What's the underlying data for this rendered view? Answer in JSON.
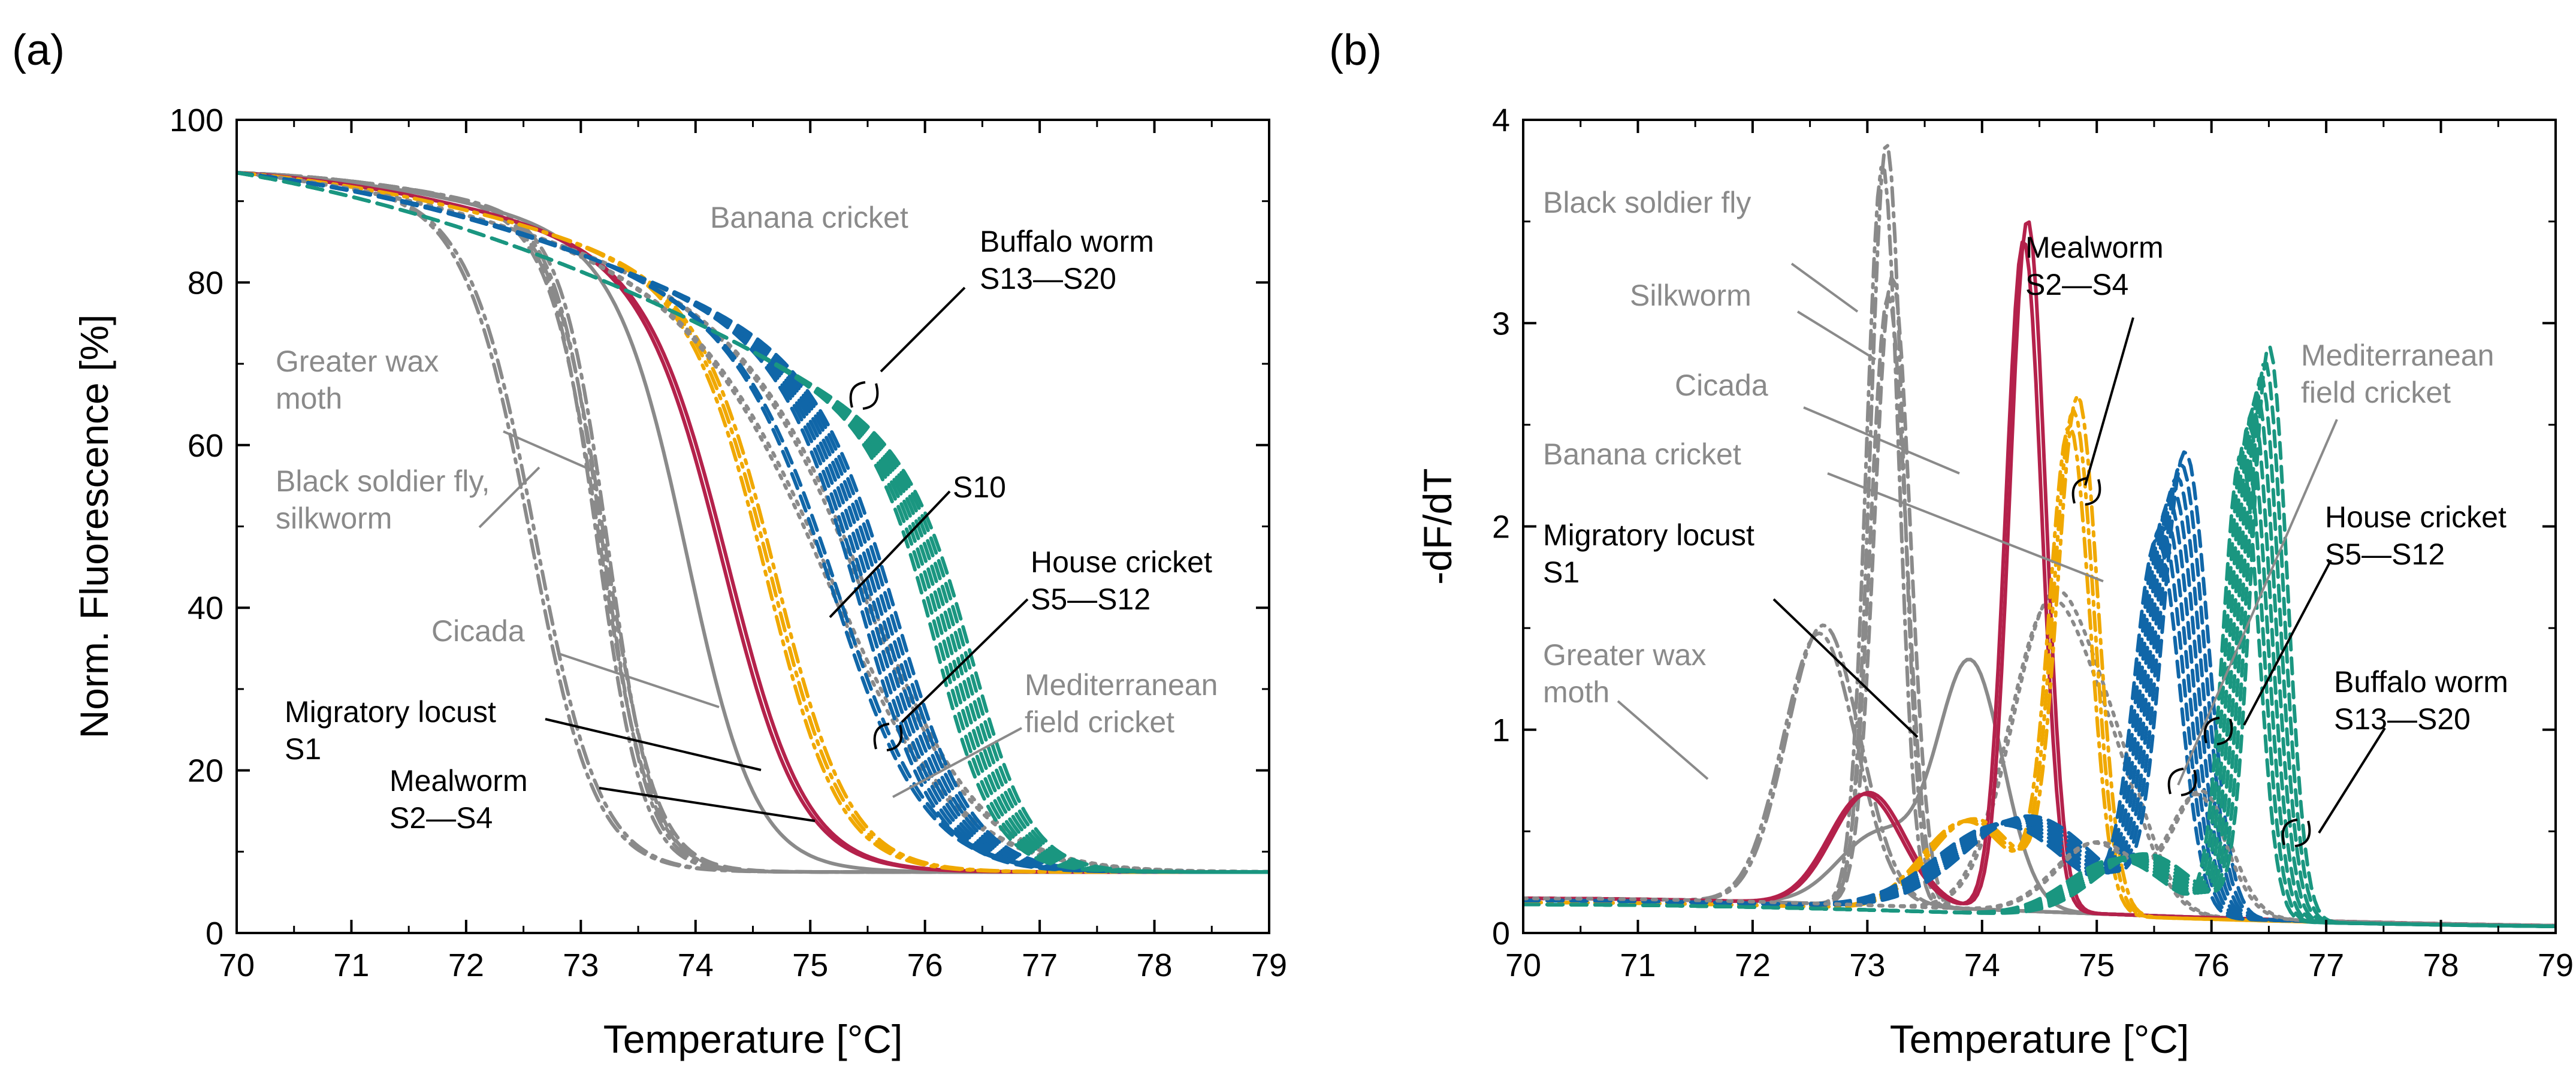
{
  "colors": {
    "gray": "#8a8a8a",
    "migratory_locust": "#b4214b",
    "mealworm": "#f0a800",
    "house_cricket": "#1066a8",
    "buffalo_worm": "#1a9680"
  },
  "chart_data": [
    {
      "panel_label": "(a)",
      "type": "line",
      "title": "",
      "xlabel": "Temperature [°C]",
      "ylabel": "Norm. Fluorescence [%]",
      "xlim": [
        70,
        79
      ],
      "ylim": [
        0,
        100
      ],
      "xticks": [
        "70",
        "71",
        "72",
        "73",
        "74",
        "75",
        "76",
        "77",
        "78",
        "79"
      ],
      "yticks": [
        "0",
        "20",
        "40",
        "60",
        "80",
        "100"
      ],
      "series": [
        {
          "name": "Greater wax moth",
          "color": "gray",
          "style": "dashdot",
          "tm": 72.6,
          "w": 0.28,
          "k": 0.9,
          "count": 2
        },
        {
          "name": "Black soldier fly",
          "color": "gray",
          "style": "dashdot",
          "tm": 73.2,
          "w": 0.2,
          "k": 0.5,
          "count": 3
        },
        {
          "name": "Silkworm",
          "color": "gray",
          "style": "dashed",
          "tm": 73.2,
          "w": 0.22,
          "k": 0.5,
          "count": 2
        },
        {
          "name": "Cicada",
          "color": "gray",
          "style": "solid",
          "tm": 73.95,
          "w": 0.3,
          "k": 0.7,
          "count": 1
        },
        {
          "name": "Migratory locust S1",
          "color": "migratory_locust",
          "style": "solid",
          "tm": 74.3,
          "w": 0.34,
          "k": 1.0,
          "count": 2
        },
        {
          "name": "Mealworm S2—S4",
          "color": "mealworm",
          "style": "dashdot",
          "tm": 74.7,
          "w": 0.32,
          "k": 1.2,
          "count": 3
        },
        {
          "name": "Banana cricket",
          "color": "gray",
          "style": "dotted",
          "tm": 75.3,
          "w": 0.55,
          "k": 1.4,
          "count": 2
        },
        {
          "name": "Mediterranean field cricket",
          "color": "gray",
          "style": "dotted",
          "tm": 75.6,
          "w": 0.5,
          "k": 1.5,
          "count": 2
        },
        {
          "name": "S10",
          "color": "house_cricket",
          "style": "dashed",
          "tm": 75.3,
          "w": 0.4,
          "k": 1.6,
          "count": 2
        },
        {
          "name": "House cricket S5—S12",
          "color": "house_cricket",
          "style": "dashed",
          "tm": 75.65,
          "w": 0.33,
          "k": 1.7,
          "count": 8
        },
        {
          "name": "Buffalo worm S13—S20",
          "color": "buffalo_worm",
          "style": "dashed",
          "tm": 76.3,
          "w": 0.26,
          "k": 2.4,
          "count": 8
        }
      ],
      "annotations": [
        {
          "text": [
            "Banana cricket"
          ],
          "color": "gray"
        },
        {
          "text": [
            "Buffalo worm",
            "S13—S20"
          ],
          "color": "black"
        },
        {
          "text": [
            "Greater wax",
            "moth"
          ],
          "color": "gray"
        },
        {
          "text": [
            "Black soldier fly,",
            "silkworm"
          ],
          "color": "gray"
        },
        {
          "text": [
            "S10"
          ],
          "color": "black"
        },
        {
          "text": [
            "House cricket",
            "S5—S12"
          ],
          "color": "black"
        },
        {
          "text": [
            "Cicada"
          ],
          "color": "gray"
        },
        {
          "text": [
            "Mediterranean",
            "field cricket"
          ],
          "color": "gray"
        },
        {
          "text": [
            "Migratory locust",
            "S1"
          ],
          "color": "black"
        },
        {
          "text": [
            "Mealworm",
            "S2—S4"
          ],
          "color": "black"
        }
      ]
    },
    {
      "panel_label": "(b)",
      "type": "line",
      "title": "",
      "xlabel": "Temperature [°C]",
      "ylabel": "-dF/dT",
      "xlim": [
        70,
        79
      ],
      "ylim": [
        0,
        4
      ],
      "xticks": [
        "70",
        "71",
        "72",
        "73",
        "74",
        "75",
        "76",
        "77",
        "78",
        "79"
      ],
      "yticks": [
        "0",
        "1",
        "2",
        "3",
        "4"
      ],
      "series": [
        {
          "name": "Black soldier fly",
          "color": "gray",
          "style": "dashdot",
          "peaks": [
            {
              "x": 73.15,
              "h": 3.7,
              "s": 0.2
            }
          ],
          "base": 0.15,
          "count": 2
        },
        {
          "name": "Silkworm",
          "color": "gray",
          "style": "dashed",
          "peaks": [
            {
              "x": 73.2,
              "h": 3.05,
              "s": 0.22
            }
          ],
          "base": 0.15,
          "count": 2
        },
        {
          "name": "Greater wax moth",
          "color": "gray",
          "style": "dashdot",
          "peaks": [
            {
              "x": 72.6,
              "h": 1.35,
              "s": 0.45
            }
          ],
          "base": 0.15,
          "count": 2
        },
        {
          "name": "Cicada",
          "color": "gray",
          "style": "solid",
          "peaks": [
            {
              "x": 73.9,
              "h": 1.2,
              "s": 0.4
            },
            {
              "x": 73.1,
              "h": 0.35,
              "s": 0.5
            }
          ],
          "base": 0.15,
          "count": 1
        },
        {
          "name": "Banana cricket",
          "color": "gray",
          "style": "dotted",
          "peaks": [
            {
              "x": 74.6,
              "h": 1.5,
              "s": 0.5
            },
            {
              "x": 75.2,
              "h": 0.5,
              "s": 0.4
            }
          ],
          "base": 0.15,
          "count": 2
        },
        {
          "name": "Migratory locust S1",
          "color": "migratory_locust",
          "style": "solid",
          "peaks": [
            {
              "x": 74.38,
              "h": 3.35,
              "s": 0.22
            },
            {
              "x": 73.0,
              "h": 0.55,
              "s": 0.45
            }
          ],
          "base": 0.15,
          "count": 2
        },
        {
          "name": "Mealworm S2—S4",
          "color": "mealworm",
          "style": "dashdot",
          "peaks": [
            {
              "x": 74.8,
              "h": 2.45,
              "s": 0.25
            },
            {
              "x": 73.9,
              "h": 0.45,
              "s": 0.55
            }
          ],
          "base": 0.13,
          "count": 3
        },
        {
          "name": "House cricket S5—S12",
          "color": "house_cricket",
          "style": "dashed",
          "peaks": [
            {
              "x": 75.65,
              "h": 2.05,
              "s": 0.28
            },
            {
              "x": 74.3,
              "h": 0.45,
              "s": 0.8
            }
          ],
          "base": 0.14,
          "count": 8
        },
        {
          "name": "Mediterranean field cricket",
          "color": "gray",
          "style": "dotted",
          "peaks": [
            {
              "x": 75.9,
              "h": 0.6,
              "s": 0.35
            },
            {
              "x": 75.0,
              "h": 0.35,
              "s": 0.5
            }
          ],
          "base": 0.15,
          "count": 2
        },
        {
          "name": "Buffalo worm S13—S20",
          "color": "buffalo_worm",
          "style": "dashed",
          "peaks": [
            {
              "x": 76.38,
              "h": 2.55,
              "s": 0.22
            },
            {
              "x": 75.3,
              "h": 0.3,
              "s": 0.6
            }
          ],
          "base": 0.12,
          "count": 8
        }
      ],
      "annotations": [
        {
          "text": [
            "Black soldier fly"
          ],
          "color": "gray"
        },
        {
          "text": [
            "Silkworm"
          ],
          "color": "gray"
        },
        {
          "text": [
            "Cicada"
          ],
          "color": "gray"
        },
        {
          "text": [
            "Banana cricket"
          ],
          "color": "gray"
        },
        {
          "text": [
            "Migratory locust",
            "S1"
          ],
          "color": "black"
        },
        {
          "text": [
            "Greater wax",
            "moth"
          ],
          "color": "gray"
        },
        {
          "text": [
            "Mealworm",
            "S2—S4"
          ],
          "color": "black"
        },
        {
          "text": [
            "Mediterranean",
            "field cricket"
          ],
          "color": "gray"
        },
        {
          "text": [
            "House cricket",
            "S5—S12"
          ],
          "color": "black"
        },
        {
          "text": [
            "Buffalo worm",
            "S13—S20"
          ],
          "color": "black"
        }
      ]
    }
  ]
}
